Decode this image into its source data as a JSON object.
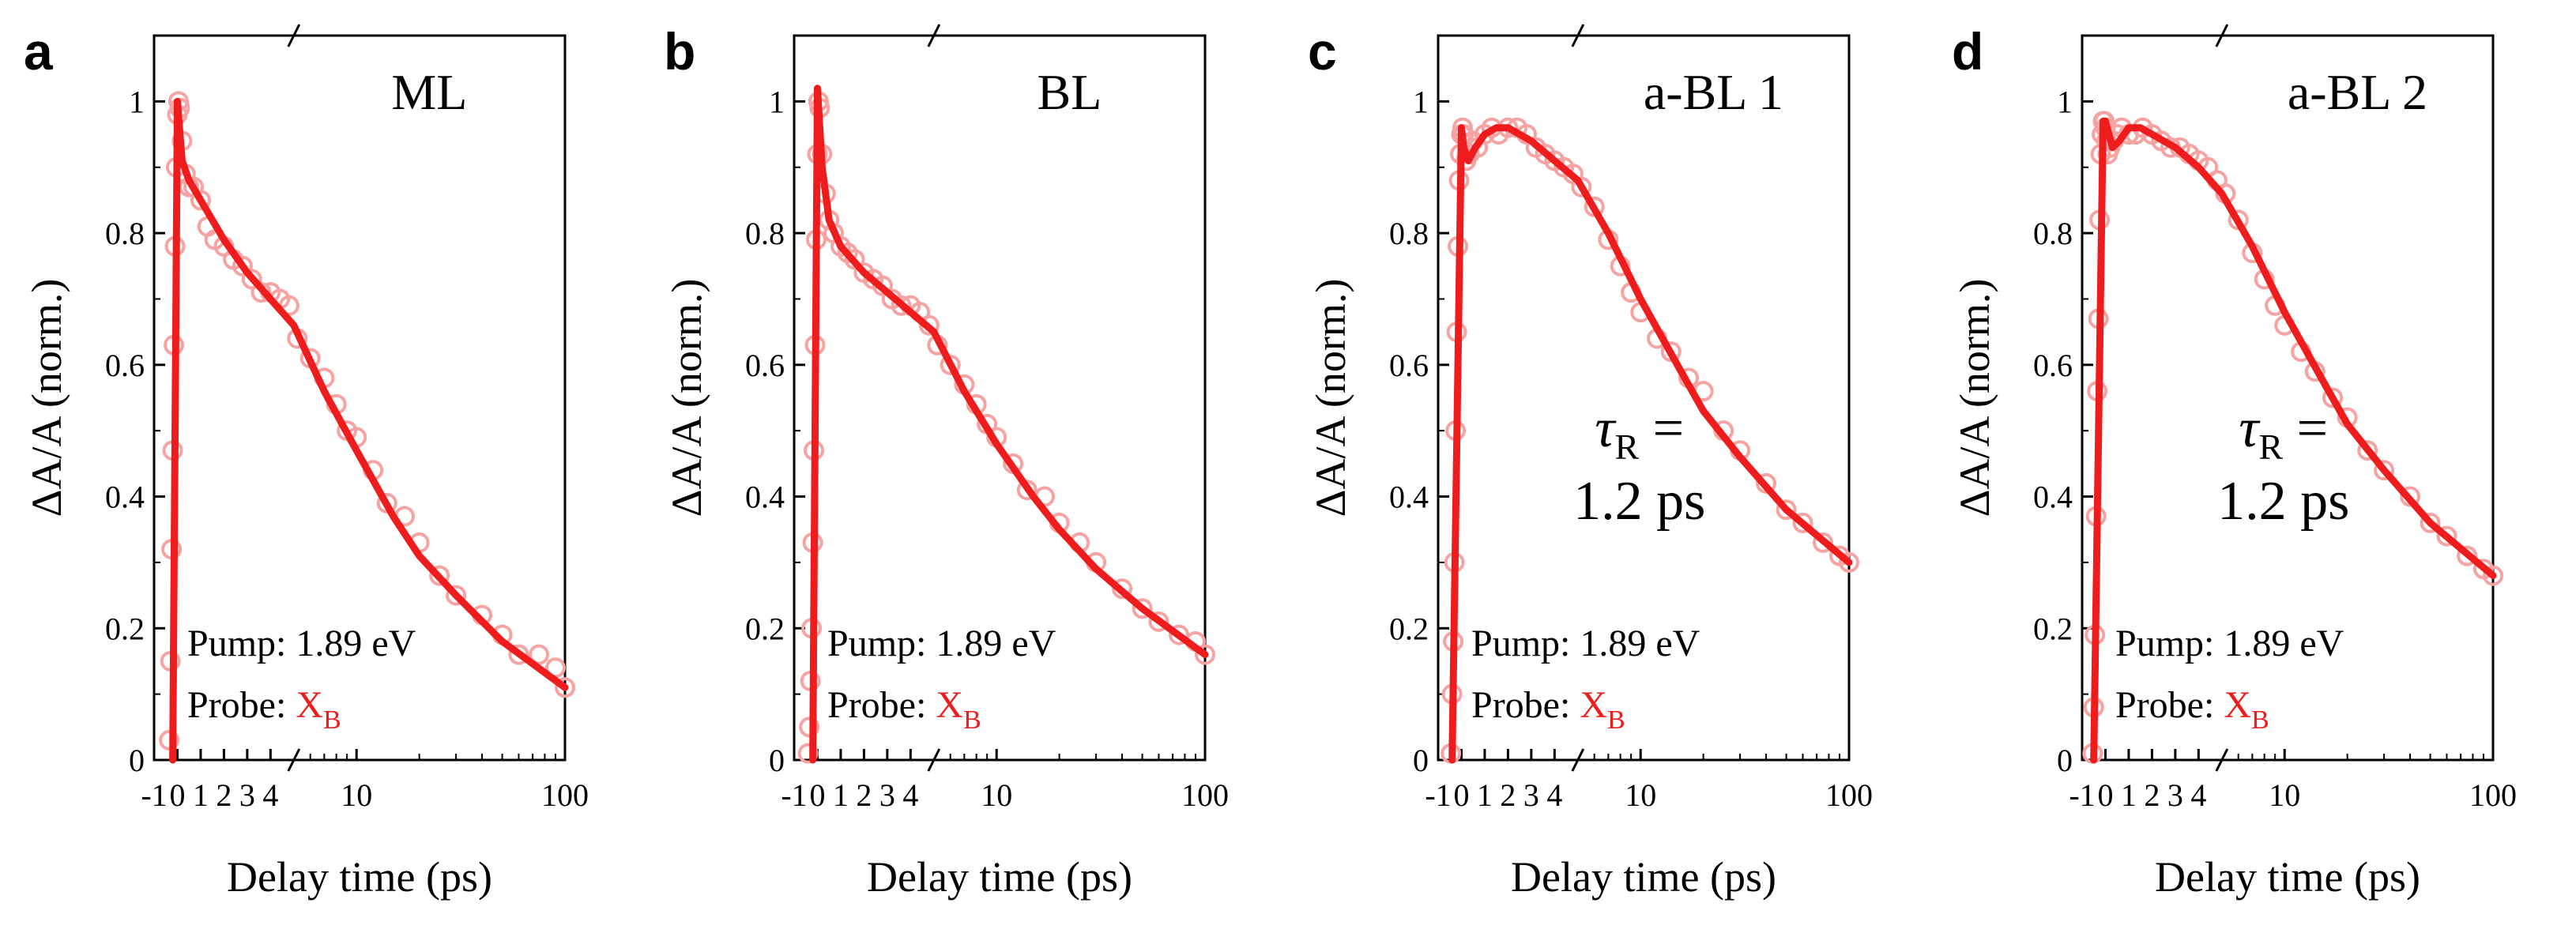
{
  "colors": {
    "fit": "#ee1c1c",
    "data": "#f5a3a3",
    "probe_symbol": "#ee1c1c",
    "axis": "#000000"
  },
  "common": {
    "ylabel": "ΔA/A (norm.)",
    "xlabel": "Delay time (ps)",
    "y_ticks": [
      "0",
      "0.2",
      "0.4",
      "0.6",
      "0.8",
      "1"
    ],
    "x_ticks_linear": [
      "-1",
      "0",
      "1",
      "2",
      "3",
      "4"
    ],
    "x_ticks_log": [
      "10",
      "100"
    ],
    "pump_text": "Pump: 1.89 eV",
    "probe_label": "Probe: ",
    "probe_symbol": "X",
    "probe_subscript": "B",
    "tau_line1": "τ",
    "tau_sub": "R",
    "tau_eq": " =",
    "tau_line2": "1.2 ps"
  },
  "chart_data": [
    {
      "panel": "a",
      "title": "ML",
      "type": "line",
      "x_axis": "broken: linear from -1 to 5 ps, logarithmic from 5 to 100 ps",
      "ylim": [
        0,
        1.1
      ],
      "show_tau": false,
      "fit": {
        "x": [
          -0.2,
          0.0,
          0.2,
          0.5,
          1.0,
          2.0,
          3.0,
          4.0,
          5.0,
          7.0,
          10.0,
          15.0,
          20.0,
          30.0,
          50.0,
          100.0
        ],
        "y": [
          0.0,
          1.0,
          0.91,
          0.88,
          0.85,
          0.79,
          0.74,
          0.7,
          0.66,
          0.56,
          0.47,
          0.37,
          0.31,
          0.25,
          0.18,
          0.11
        ]
      },
      "data": {
        "x": [
          -0.35,
          -0.3,
          -0.25,
          -0.2,
          -0.15,
          -0.1,
          -0.05,
          0.0,
          0.05,
          0.1,
          0.2,
          0.35,
          0.5,
          0.7,
          1.0,
          1.3,
          1.6,
          2.0,
          2.4,
          2.8,
          3.2,
          3.6,
          4.0,
          4.4,
          4.8,
          5.2,
          6.0,
          7.0,
          8.0,
          9.0,
          10.0,
          12.0,
          14.0,
          17.0,
          20.0,
          25.0,
          30.0,
          40.0,
          50.0,
          60.0,
          75.0,
          90.0,
          100.0
        ],
        "y": [
          0.03,
          0.15,
          0.32,
          0.47,
          0.63,
          0.78,
          0.9,
          0.98,
          1.0,
          0.99,
          0.94,
          0.89,
          0.87,
          0.87,
          0.85,
          0.81,
          0.79,
          0.78,
          0.76,
          0.75,
          0.73,
          0.71,
          0.71,
          0.7,
          0.69,
          0.64,
          0.61,
          0.58,
          0.54,
          0.5,
          0.49,
          0.44,
          0.39,
          0.37,
          0.33,
          0.28,
          0.25,
          0.22,
          0.19,
          0.16,
          0.16,
          0.14,
          0.11
        ]
      }
    },
    {
      "panel": "b",
      "title": "BL",
      "type": "line",
      "x_axis": "broken: linear from -1 to 5 ps, logarithmic from 5 to 100 ps",
      "ylim": [
        0,
        1.1
      ],
      "show_tau": false,
      "fit": {
        "x": [
          -0.2,
          0.0,
          0.2,
          0.5,
          1.0,
          2.0,
          3.0,
          4.0,
          5.0,
          7.0,
          10.0,
          15.0,
          20.0,
          30.0,
          50.0,
          100.0
        ],
        "y": [
          0.0,
          1.02,
          0.9,
          0.82,
          0.78,
          0.74,
          0.71,
          0.68,
          0.65,
          0.56,
          0.48,
          0.4,
          0.35,
          0.29,
          0.23,
          0.16
        ]
      },
      "data": {
        "x": [
          -0.4,
          -0.35,
          -0.3,
          -0.25,
          -0.2,
          -0.15,
          -0.1,
          -0.05,
          0.0,
          0.05,
          0.1,
          0.2,
          0.35,
          0.5,
          0.7,
          1.0,
          1.3,
          1.6,
          2.0,
          2.4,
          2.8,
          3.2,
          3.6,
          4.0,
          4.4,
          4.8,
          5.2,
          6.0,
          7.0,
          8.0,
          9.0,
          10.0,
          12.0,
          14.0,
          17.0,
          20.0,
          25.0,
          30.0,
          40.0,
          50.0,
          60.0,
          75.0,
          90.0,
          100.0
        ],
        "y": [
          0.01,
          0.05,
          0.12,
          0.2,
          0.33,
          0.47,
          0.63,
          0.79,
          0.92,
          1.0,
          0.99,
          0.92,
          0.86,
          0.82,
          0.8,
          0.78,
          0.77,
          0.76,
          0.74,
          0.73,
          0.72,
          0.7,
          0.69,
          0.69,
          0.68,
          0.66,
          0.63,
          0.6,
          0.57,
          0.54,
          0.51,
          0.49,
          0.45,
          0.41,
          0.4,
          0.36,
          0.33,
          0.3,
          0.26,
          0.23,
          0.21,
          0.19,
          0.18,
          0.16
        ]
      }
    },
    {
      "panel": "c",
      "title": "a-BL 1",
      "type": "line",
      "x_axis": "broken: linear from -1 to 5 ps, logarithmic from 5 to 100 ps",
      "ylim": [
        0,
        1.1
      ],
      "show_tau": true,
      "fit": {
        "x": [
          -0.4,
          0.0,
          0.1,
          0.3,
          0.6,
          1.0,
          1.5,
          2.0,
          2.5,
          3.0,
          4.0,
          5.0,
          7.0,
          10.0,
          15.0,
          20.0,
          30.0,
          50.0,
          100.0
        ],
        "y": [
          0.0,
          0.96,
          0.93,
          0.91,
          0.93,
          0.95,
          0.96,
          0.96,
          0.95,
          0.94,
          0.91,
          0.88,
          0.8,
          0.7,
          0.6,
          0.53,
          0.46,
          0.38,
          0.3
        ]
      },
      "data": {
        "x": [
          -0.45,
          -0.4,
          -0.35,
          -0.3,
          -0.25,
          -0.2,
          -0.15,
          -0.1,
          -0.05,
          0.0,
          0.05,
          0.1,
          0.2,
          0.35,
          0.5,
          0.7,
          1.0,
          1.3,
          1.6,
          2.0,
          2.4,
          2.8,
          3.2,
          3.6,
          4.0,
          4.4,
          4.8,
          5.2,
          6.0,
          7.0,
          8.0,
          9.0,
          10.0,
          12.0,
          14.0,
          17.0,
          20.0,
          25.0,
          30.0,
          40.0,
          50.0,
          60.0,
          75.0,
          90.0,
          100.0
        ],
        "y": [
          0.01,
          0.1,
          0.18,
          0.3,
          0.5,
          0.65,
          0.78,
          0.88,
          0.92,
          0.95,
          0.96,
          0.95,
          0.91,
          0.92,
          0.94,
          0.93,
          0.95,
          0.96,
          0.95,
          0.96,
          0.96,
          0.95,
          0.93,
          0.92,
          0.91,
          0.9,
          0.89,
          0.87,
          0.84,
          0.79,
          0.75,
          0.71,
          0.68,
          0.64,
          0.62,
          0.58,
          0.56,
          0.5,
          0.47,
          0.42,
          0.38,
          0.36,
          0.33,
          0.31,
          0.3
        ]
      }
    },
    {
      "panel": "d",
      "title": "a-BL 2",
      "type": "line",
      "x_axis": "broken: linear from -1 to 5 ps, logarithmic from 5 to 100 ps",
      "ylim": [
        0,
        1.1
      ],
      "show_tau": true,
      "fit": {
        "x": [
          -0.5,
          -0.1,
          0.0,
          0.3,
          0.6,
          1.0,
          1.5,
          2.0,
          2.5,
          3.0,
          4.0,
          5.0,
          7.0,
          10.0,
          15.0,
          20.0,
          30.0,
          50.0,
          100.0
        ],
        "y": [
          0.0,
          0.97,
          0.97,
          0.93,
          0.94,
          0.96,
          0.96,
          0.95,
          0.94,
          0.93,
          0.9,
          0.86,
          0.78,
          0.68,
          0.58,
          0.51,
          0.44,
          0.36,
          0.28
        ]
      },
      "data": {
        "x": [
          -0.55,
          -0.5,
          -0.45,
          -0.4,
          -0.35,
          -0.3,
          -0.25,
          -0.2,
          -0.15,
          -0.1,
          -0.05,
          0.0,
          0.05,
          0.1,
          0.2,
          0.35,
          0.5,
          0.7,
          1.0,
          1.3,
          1.6,
          2.0,
          2.4,
          2.8,
          3.2,
          3.6,
          4.0,
          4.4,
          4.8,
          5.2,
          6.0,
          7.0,
          8.0,
          9.0,
          10.0,
          12.0,
          14.0,
          17.0,
          20.0,
          25.0,
          30.0,
          40.0,
          50.0,
          60.0,
          75.0,
          90.0,
          100.0
        ],
        "y": [
          0.01,
          0.08,
          0.19,
          0.37,
          0.56,
          0.67,
          0.82,
          0.92,
          0.95,
          0.97,
          0.97,
          0.96,
          0.94,
          0.92,
          0.93,
          0.94,
          0.95,
          0.96,
          0.95,
          0.95,
          0.96,
          0.95,
          0.94,
          0.93,
          0.93,
          0.92,
          0.91,
          0.9,
          0.88,
          0.86,
          0.82,
          0.77,
          0.73,
          0.69,
          0.66,
          0.62,
          0.59,
          0.55,
          0.52,
          0.47,
          0.44,
          0.4,
          0.36,
          0.34,
          0.31,
          0.29,
          0.28
        ]
      }
    }
  ]
}
